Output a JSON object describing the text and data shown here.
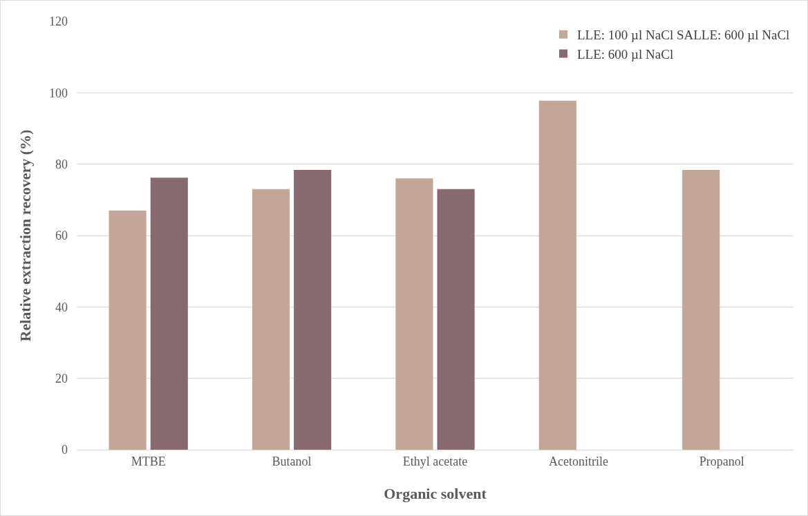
{
  "chart_data": {
    "type": "bar",
    "xlabel": "Organic solvent",
    "ylabel": "Relative extraction recovery (%)",
    "categories": [
      "MTBE",
      "Butanol",
      "Ethyl acetate",
      "Acetonitrile",
      "Propanol"
    ],
    "series": [
      {
        "name": "LLE: 100 µl NaCl SALLE: 600 µl NaCl",
        "color": "#c2a69a",
        "values": [
          67,
          73,
          76,
          97.8,
          78.4
        ]
      },
      {
        "name": "LLE: 600 µl NaCl",
        "color": "#866a70",
        "values": [
          76.2,
          78.4,
          73,
          null,
          null
        ]
      }
    ],
    "ylim": [
      0,
      120
    ],
    "yticks": [
      0,
      20,
      40,
      60,
      80,
      100,
      120
    ],
    "grid": "y",
    "legend": "top right"
  }
}
